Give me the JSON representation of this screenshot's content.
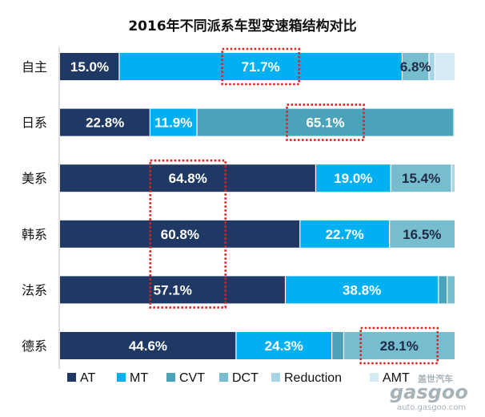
{
  "chart_data": {
    "type": "bar",
    "orientation": "horizontal",
    "stacked": true,
    "percent_stacked": true,
    "title": "2016年不同派系车型变速箱结构对比",
    "categories": [
      "自主",
      "日系",
      "美系",
      "韩系",
      "法系",
      "德系"
    ],
    "xlim": [
      0,
      100
    ],
    "series": [
      {
        "name": "AT",
        "color": "#1f3864",
        "values": [
          15.0,
          22.8,
          64.8,
          60.8,
          57.1,
          44.6
        ]
      },
      {
        "name": "MT",
        "color": "#00b0f0",
        "values": [
          71.7,
          11.9,
          19.0,
          22.7,
          38.8,
          24.3
        ]
      },
      {
        "name": "CVT",
        "color": "#4ba3b9",
        "values": [
          0.0,
          65.1,
          0.0,
          0.0,
          2.2,
          3.0
        ]
      },
      {
        "name": "DCT",
        "color": "#76bdcf",
        "values": [
          6.8,
          0.0,
          15.4,
          16.5,
          1.9,
          28.1
        ]
      },
      {
        "name": "Reduction",
        "color": "#a7d5e5",
        "values": [
          1.5,
          0.2,
          0.8,
          0.0,
          0.0,
          0.0
        ]
      },
      {
        "name": "AMT",
        "color": "#d4ebf3",
        "values": [
          5.0,
          0.0,
          0.0,
          0.0,
          0.0,
          0.0
        ]
      }
    ],
    "data_labels": [
      {
        "category": "自主",
        "series": "AT",
        "text": "15.0%",
        "color": "#ffffff"
      },
      {
        "category": "自主",
        "series": "MT",
        "text": "71.7%",
        "color": "#ffffff"
      },
      {
        "category": "自主",
        "series": "DCT",
        "text": "6.8%",
        "color": "#1f2a44"
      },
      {
        "category": "日系",
        "series": "AT",
        "text": "22.8%",
        "color": "#ffffff"
      },
      {
        "category": "日系",
        "series": "MT",
        "text": "11.9%",
        "color": "#ffffff"
      },
      {
        "category": "日系",
        "series": "CVT",
        "text": "65.1%",
        "color": "#ffffff"
      },
      {
        "category": "美系",
        "series": "AT",
        "text": "64.8%",
        "color": "#ffffff"
      },
      {
        "category": "美系",
        "series": "MT",
        "text": "19.0%",
        "color": "#ffffff"
      },
      {
        "category": "美系",
        "series": "DCT",
        "text": "15.4%",
        "color": "#1f2a44"
      },
      {
        "category": "韩系",
        "series": "AT",
        "text": "60.8%",
        "color": "#ffffff"
      },
      {
        "category": "韩系",
        "series": "MT",
        "text": "22.7%",
        "color": "#ffffff"
      },
      {
        "category": "韩系",
        "series": "DCT",
        "text": "16.5%",
        "color": "#1f2a44"
      },
      {
        "category": "法系",
        "series": "AT",
        "text": "57.1%",
        "color": "#ffffff"
      },
      {
        "category": "法系",
        "series": "MT",
        "text": "38.8%",
        "color": "#ffffff"
      },
      {
        "category": "德系",
        "series": "AT",
        "text": "44.6%",
        "color": "#ffffff"
      },
      {
        "category": "德系",
        "series": "MT",
        "text": "24.3%",
        "color": "#ffffff"
      },
      {
        "category": "德系",
        "series": "DCT",
        "text": "28.1%",
        "color": "#1f2a44"
      }
    ],
    "highlights": [
      {
        "category": "自主",
        "series": "MT"
      },
      {
        "category": "日系",
        "series": "CVT"
      },
      {
        "categories": [
          "美系",
          "韩系",
          "法系"
        ],
        "series": "AT"
      },
      {
        "category": "德系",
        "series": "DCT"
      }
    ],
    "highlight_color": "#e02020",
    "legend_position": "bottom",
    "grid": false
  },
  "watermark": {
    "text_cn": "盖世汽车",
    "text_logo": "gasgoo",
    "text_url": "auto.gasgoo.com"
  }
}
